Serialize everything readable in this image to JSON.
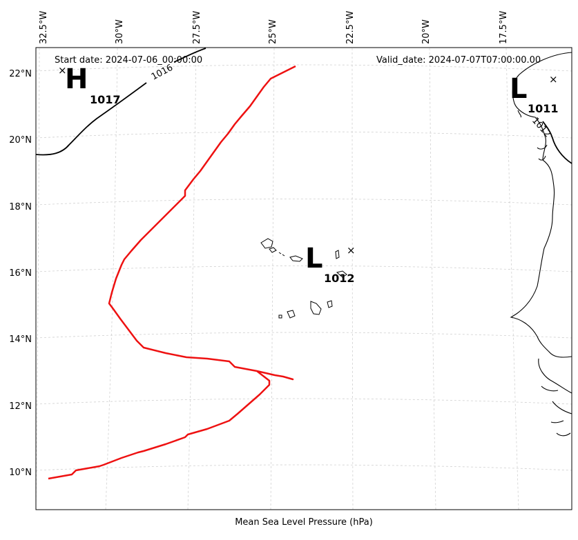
{
  "map": {
    "start_date": "Start date: 2024-07-06_00:00:00",
    "valid_date": "Valid_date: 2024-07-07T07:00:00.00",
    "xlabel": "Mean Sea Level Pressure (hPa)",
    "lon_labels": [
      "32.5°W",
      "30°W",
      "27.5°W",
      "25°W",
      "22.5°W",
      "20°W",
      "17.5°W"
    ],
    "lat_labels": [
      "22°N",
      "20°N",
      "18°N",
      "16°N",
      "14°N",
      "12°N",
      "10°N"
    ],
    "pressure_centers": [
      {
        "symbol": "H",
        "value": "1017"
      },
      {
        "symbol": "L",
        "value": "1012"
      },
      {
        "symbol": "L",
        "value": "1011"
      }
    ],
    "center_marker": "×",
    "contour_labels": [
      "1016",
      "1012"
    ],
    "track_color": "#ee1111"
  }
}
